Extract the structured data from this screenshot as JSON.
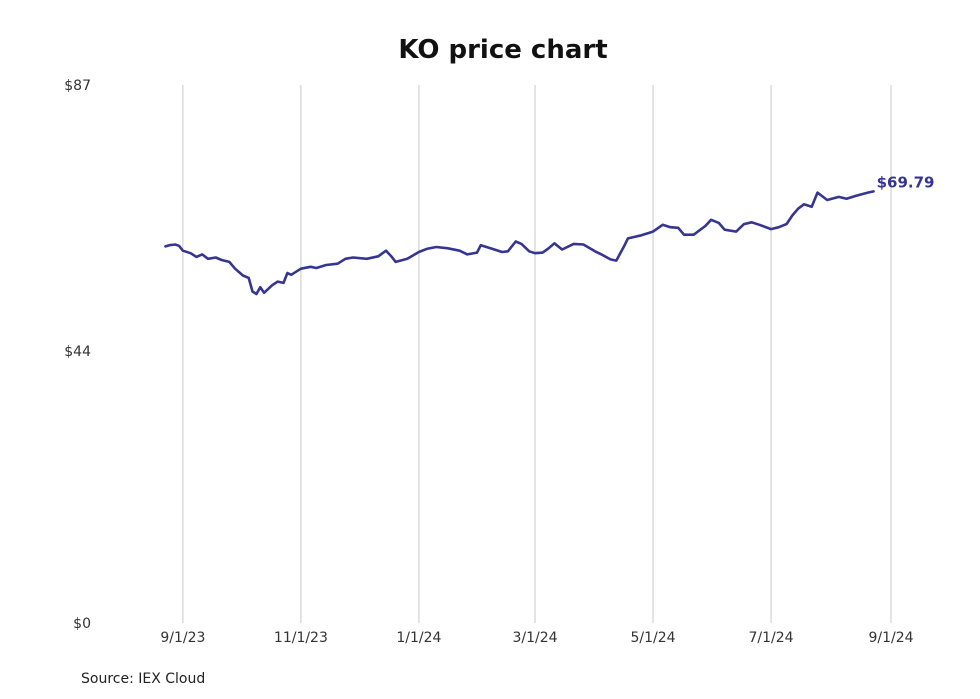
{
  "colors": {
    "line": "#363692",
    "grid": "#c8c8c8",
    "text": "#333333"
  },
  "footer": {
    "source": "Source: IEX Cloud"
  },
  "chart_data": {
    "type": "line",
    "title": "KO price chart",
    "xlabel": "",
    "ylabel": "",
    "ylim": [
      0,
      87
    ],
    "y_ticks": [
      {
        "value": 0,
        "label": "$0"
      },
      {
        "value": 44,
        "label": "$44"
      },
      {
        "value": 87,
        "label": "$87"
      }
    ],
    "xlim": [
      "2023-08-15",
      "2024-09-01"
    ],
    "x_ticks": [
      {
        "value": "2023-09-01",
        "label": "9/1/23"
      },
      {
        "value": "2023-11-01",
        "label": "11/1/23"
      },
      {
        "value": "2024-01-01",
        "label": "1/1/24"
      },
      {
        "value": "2024-03-01",
        "label": "3/1/24"
      },
      {
        "value": "2024-05-01",
        "label": "5/1/24"
      },
      {
        "value": "2024-07-01",
        "label": "7/1/24"
      },
      {
        "value": "2024-09-01",
        "label": "9/1/24"
      }
    ],
    "grid": "vertical",
    "last_value_label": "$69.79",
    "series": [
      {
        "points": [
          [
            "2023-08-23",
            60.9
          ],
          [
            "2023-08-25",
            61.1
          ],
          [
            "2023-08-28",
            61.2
          ],
          [
            "2023-08-30",
            61.0
          ],
          [
            "2023-09-01",
            60.2
          ],
          [
            "2023-09-05",
            59.8
          ],
          [
            "2023-09-08",
            59.2
          ],
          [
            "2023-09-11",
            59.6
          ],
          [
            "2023-09-14",
            58.9
          ],
          [
            "2023-09-18",
            59.1
          ],
          [
            "2023-09-21",
            58.7
          ],
          [
            "2023-09-25",
            58.4
          ],
          [
            "2023-09-28",
            57.3
          ],
          [
            "2023-10-02",
            56.2
          ],
          [
            "2023-10-05",
            55.8
          ],
          [
            "2023-10-07",
            53.6
          ],
          [
            "2023-10-09",
            53.2
          ],
          [
            "2023-10-11",
            54.3
          ],
          [
            "2023-10-13",
            53.4
          ],
          [
            "2023-10-17",
            54.6
          ],
          [
            "2023-10-20",
            55.2
          ],
          [
            "2023-10-23",
            55.0
          ],
          [
            "2023-10-25",
            56.6
          ],
          [
            "2023-10-27",
            56.3
          ],
          [
            "2023-11-01",
            57.3
          ],
          [
            "2023-11-06",
            57.6
          ],
          [
            "2023-11-09",
            57.4
          ],
          [
            "2023-11-14",
            57.9
          ],
          [
            "2023-11-20",
            58.1
          ],
          [
            "2023-11-24",
            58.9
          ],
          [
            "2023-11-28",
            59.1
          ],
          [
            "2023-12-05",
            58.9
          ],
          [
            "2023-12-11",
            59.3
          ],
          [
            "2023-12-15",
            60.2
          ],
          [
            "2023-12-18",
            59.2
          ],
          [
            "2023-12-20",
            58.4
          ],
          [
            "2023-12-26",
            58.9
          ],
          [
            "2024-01-01",
            60.0
          ],
          [
            "2024-01-05",
            60.5
          ],
          [
            "2024-01-10",
            60.8
          ],
          [
            "2024-01-16",
            60.6
          ],
          [
            "2024-01-22",
            60.2
          ],
          [
            "2024-01-26",
            59.6
          ],
          [
            "2024-01-31",
            59.9
          ],
          [
            "2024-02-02",
            61.1
          ],
          [
            "2024-02-07",
            60.6
          ],
          [
            "2024-02-13",
            60.0
          ],
          [
            "2024-02-16",
            60.1
          ],
          [
            "2024-02-20",
            61.7
          ],
          [
            "2024-02-23",
            61.3
          ],
          [
            "2024-02-27",
            60.1
          ],
          [
            "2024-03-01",
            59.8
          ],
          [
            "2024-03-05",
            59.9
          ],
          [
            "2024-03-08",
            60.6
          ],
          [
            "2024-03-11",
            61.4
          ],
          [
            "2024-03-15",
            60.4
          ],
          [
            "2024-03-21",
            61.3
          ],
          [
            "2024-03-26",
            61.2
          ],
          [
            "2024-04-01",
            60.1
          ],
          [
            "2024-04-05",
            59.5
          ],
          [
            "2024-04-09",
            58.8
          ],
          [
            "2024-04-12",
            58.6
          ],
          [
            "2024-04-16",
            60.9
          ],
          [
            "2024-04-18",
            62.2
          ],
          [
            "2024-04-25",
            62.7
          ],
          [
            "2024-05-01",
            63.3
          ],
          [
            "2024-05-06",
            64.4
          ],
          [
            "2024-05-10",
            64.0
          ],
          [
            "2024-05-14",
            63.9
          ],
          [
            "2024-05-17",
            62.8
          ],
          [
            "2024-05-22",
            62.8
          ],
          [
            "2024-05-28",
            64.2
          ],
          [
            "2024-05-31",
            65.2
          ],
          [
            "2024-06-04",
            64.7
          ],
          [
            "2024-06-07",
            63.6
          ],
          [
            "2024-06-13",
            63.3
          ],
          [
            "2024-06-17",
            64.5
          ],
          [
            "2024-06-21",
            64.8
          ],
          [
            "2024-06-25",
            64.4
          ],
          [
            "2024-07-01",
            63.7
          ],
          [
            "2024-07-05",
            64.0
          ],
          [
            "2024-07-09",
            64.5
          ],
          [
            "2024-07-12",
            65.9
          ],
          [
            "2024-07-15",
            67.0
          ],
          [
            "2024-07-18",
            67.7
          ],
          [
            "2024-07-22",
            67.3
          ],
          [
            "2024-07-25",
            69.6
          ],
          [
            "2024-07-30",
            68.4
          ],
          [
            "2024-08-05",
            68.9
          ],
          [
            "2024-08-09",
            68.6
          ],
          [
            "2024-08-14",
            69.1
          ],
          [
            "2024-08-20",
            69.6
          ],
          [
            "2024-08-23",
            69.79
          ]
        ]
      }
    ]
  }
}
